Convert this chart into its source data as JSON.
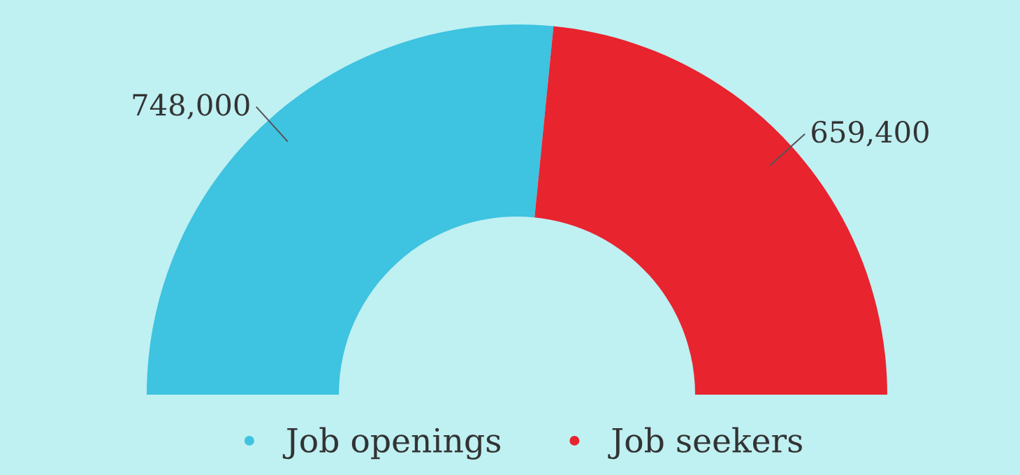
{
  "chart_data": {
    "type": "donut",
    "categories": [
      "Job openings",
      "Job seekers"
    ],
    "values": [
      748000,
      659400
    ],
    "colors": [
      "#3ec3e0",
      "#e8242f"
    ],
    "value_labels": [
      "748,000",
      "659,400"
    ],
    "legend": "bottom"
  }
}
